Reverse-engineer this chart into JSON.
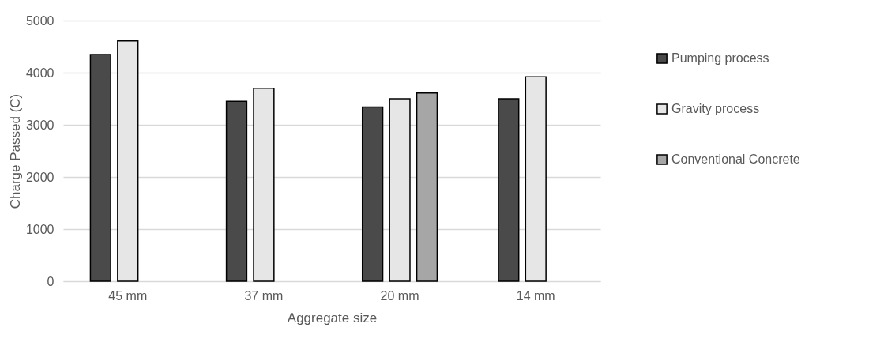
{
  "chart_data": {
    "type": "bar",
    "xlabel": "Aggregate size",
    "ylabel": "Charge  Passed (C)",
    "categories": [
      "45 mm",
      "37 mm",
      "20 mm",
      "14 mm"
    ],
    "series": [
      {
        "name": "Pumping process",
        "color": "#4a4a4a",
        "values": [
          4350,
          3450,
          3340,
          3500
        ]
      },
      {
        "name": "Gravity process",
        "color": "#e6e6e6",
        "values": [
          4610,
          3700,
          3500,
          3920
        ]
      },
      {
        "name": "Conventional Concrete",
        "color": "#a6a6a6",
        "values": [
          null,
          null,
          3610,
          null
        ]
      }
    ],
    "ylim": [
      0,
      5000
    ],
    "yticks": [
      0,
      1000,
      2000,
      3000,
      4000,
      5000
    ],
    "grid": "y",
    "legend": "right"
  }
}
